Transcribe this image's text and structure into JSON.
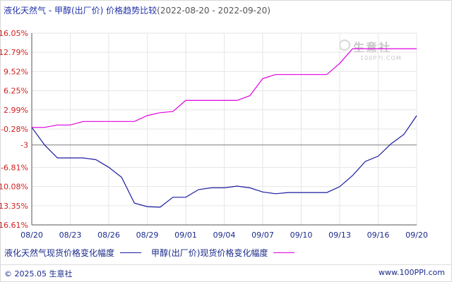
{
  "title": {
    "main": "液化天然气 - 甲醇(出厂价) 价格趋势比较",
    "range": "(2022-08-20 - 2022-09-20)"
  },
  "watermark": {
    "main": "生意社",
    "sub": "100PPI.COM"
  },
  "legend": [
    {
      "label": "液化天然气现货价格变化幅度",
      "color": "#1a1aa0"
    },
    {
      "label": "甲醇(出厂价)现货价格变化幅度",
      "color": "#e000e0"
    }
  ],
  "footer": {
    "left": "© 2025.05 生意社",
    "right": "www.100PPI.com"
  },
  "chart_data": {
    "type": "line",
    "ylim": [
      -16.61,
      16.05
    ],
    "yticks": [
      16.05,
      12.79,
      9.52,
      6.25,
      2.99,
      -0.28,
      -3,
      -6.81,
      -10.08,
      -13.35,
      -16.61
    ],
    "ytick_labels": [
      "16.05%",
      "12.79%",
      "9.52%",
      "6.25%",
      "2.99%",
      "-0.28%",
      "-3",
      "-6.81%",
      "-10.08%",
      "-13.35%",
      "-16.61%"
    ],
    "xticks": [
      0,
      3,
      6,
      9,
      12,
      15,
      18,
      21,
      24,
      27,
      30
    ],
    "xtick_labels": [
      "08/20",
      "08/23",
      "08/26",
      "08/29",
      "09/01",
      "09/04",
      "09/07",
      "09/10",
      "09/13",
      "09/16",
      "09/20"
    ],
    "baseline": -3,
    "colors": {
      "axis": "#555555",
      "baseline": "#808080",
      "grid": "#e6e6e6"
    },
    "series": [
      {
        "name": "液化天然气现货价格变化幅度",
        "color": "#1a1aa0",
        "points": [
          [
            0,
            0
          ],
          [
            1,
            -3
          ],
          [
            2,
            -5.2
          ],
          [
            3,
            -5.2
          ],
          [
            4,
            -5.2
          ],
          [
            5,
            -5.5
          ],
          [
            6,
            -6.8
          ],
          [
            7,
            -8.5
          ],
          [
            8,
            -12.9
          ],
          [
            9,
            -13.5
          ],
          [
            10,
            -13.6
          ],
          [
            11,
            -11.9
          ],
          [
            12,
            -11.9
          ],
          [
            13,
            -10.6
          ],
          [
            14,
            -10.3
          ],
          [
            15,
            -10.3
          ],
          [
            16,
            -10
          ],
          [
            17,
            -10.3
          ],
          [
            18,
            -11
          ],
          [
            19,
            -11.3
          ],
          [
            20,
            -11.1
          ],
          [
            21,
            -11.1
          ],
          [
            22,
            -11.1
          ],
          [
            23,
            -11.1
          ],
          [
            24,
            -10.1
          ],
          [
            25,
            -8.2
          ],
          [
            26,
            -5.8
          ],
          [
            27,
            -4.9
          ],
          [
            28,
            -2.8
          ],
          [
            29,
            -1.2
          ],
          [
            30,
            2
          ]
        ]
      },
      {
        "name": "甲醇(出厂价)现货价格变化幅度",
        "color": "#e000e0",
        "points": [
          [
            0,
            0
          ],
          [
            1,
            0
          ],
          [
            2,
            0.4
          ],
          [
            3,
            0.4
          ],
          [
            4,
            1
          ],
          [
            5,
            1
          ],
          [
            6,
            1
          ],
          [
            7,
            1
          ],
          [
            8,
            1
          ],
          [
            9,
            2
          ],
          [
            10,
            2.5
          ],
          [
            11,
            2.7
          ],
          [
            12,
            4.6
          ],
          [
            13,
            4.6
          ],
          [
            14,
            4.6
          ],
          [
            15,
            4.6
          ],
          [
            16,
            4.6
          ],
          [
            17,
            5.4
          ],
          [
            18,
            8.3
          ],
          [
            19,
            9
          ],
          [
            20,
            9
          ],
          [
            21,
            9
          ],
          [
            22,
            9
          ],
          [
            23,
            9
          ],
          [
            24,
            10.9
          ],
          [
            25,
            13.4
          ],
          [
            26,
            13.4
          ],
          [
            27,
            13.4
          ],
          [
            28,
            13.4
          ],
          [
            29,
            13.4
          ],
          [
            30,
            13.4
          ]
        ]
      }
    ]
  }
}
